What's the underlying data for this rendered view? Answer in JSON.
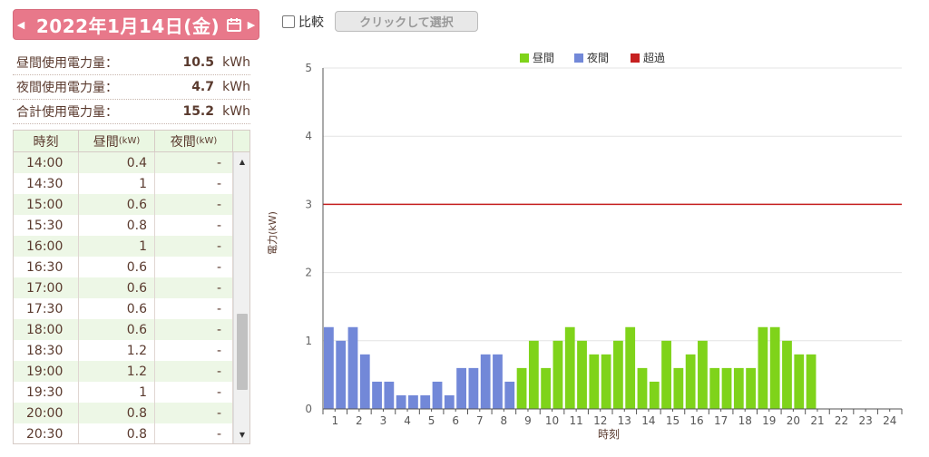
{
  "header": {
    "date": "2022年1月14日(金)",
    "compare_label": "比較",
    "select_button": "クリックして選択"
  },
  "summary": [
    {
      "label": "昼間使用電力量：",
      "value": "10.5",
      "unit": "kWh"
    },
    {
      "label": "夜間使用電力量：",
      "value": "4.7",
      "unit": "kWh"
    },
    {
      "label": "合計使用電力量：",
      "value": "15.2",
      "unit": "kWh"
    }
  ],
  "table": {
    "headers": {
      "time": "時刻",
      "day": "昼間",
      "night": "夜間",
      "unit": "(kW)"
    },
    "rows": [
      [
        "14:00",
        "0.4",
        "-"
      ],
      [
        "14:30",
        "1",
        "-"
      ],
      [
        "15:00",
        "0.6",
        "-"
      ],
      [
        "15:30",
        "0.8",
        "-"
      ],
      [
        "16:00",
        "1",
        "-"
      ],
      [
        "16:30",
        "0.6",
        "-"
      ],
      [
        "17:00",
        "0.6",
        "-"
      ],
      [
        "17:30",
        "0.6",
        "-"
      ],
      [
        "18:00",
        "0.6",
        "-"
      ],
      [
        "18:30",
        "1.2",
        "-"
      ],
      [
        "19:00",
        "1.2",
        "-"
      ],
      [
        "19:30",
        "1",
        "-"
      ],
      [
        "20:00",
        "0.8",
        "-"
      ],
      [
        "20:30",
        "0.8",
        "-"
      ]
    ]
  },
  "chart_data": {
    "type": "bar",
    "legend": [
      {
        "name": "昼間",
        "color": "#7fd31a"
      },
      {
        "name": "夜間",
        "color": "#7288d8"
      },
      {
        "name": "超過",
        "color": "#c62020"
      }
    ],
    "xlabel": "時刻",
    "ylabel": "電力(kW)",
    "ylim": [
      0,
      5
    ],
    "yticks": [
      0,
      1,
      2,
      3,
      4,
      5
    ],
    "xticks": [
      "1",
      "2",
      "3",
      "4",
      "5",
      "6",
      "7",
      "8",
      "9",
      "10",
      "11",
      "12",
      "13",
      "14",
      "15",
      "16",
      "17",
      "18",
      "19",
      "20",
      "21",
      "22",
      "23",
      "24"
    ],
    "limit_line": 3,
    "values": [
      1.2,
      1.0,
      1.2,
      0.8,
      0.4,
      0.4,
      0.2,
      0.2,
      0.2,
      0.4,
      0.2,
      0.6,
      0.6,
      0.8,
      0.8,
      0.4,
      0.6,
      1.0,
      0.6,
      1.0,
      1.2,
      1.0,
      0.8,
      0.8,
      1.0,
      1.2,
      0.6,
      0.4,
      1.0,
      0.6,
      0.8,
      1.0,
      0.6,
      0.6,
      0.6,
      0.6,
      1.2,
      1.2,
      1.0,
      0.8,
      0.8
    ],
    "series_of_bar": [
      "night",
      "night",
      "night",
      "night",
      "night",
      "night",
      "night",
      "night",
      "night",
      "night",
      "night",
      "night",
      "night",
      "night",
      "night",
      "night",
      "day",
      "day",
      "day",
      "day",
      "day",
      "day",
      "day",
      "day",
      "day",
      "day",
      "day",
      "day",
      "day",
      "day",
      "day",
      "day",
      "day",
      "day",
      "day",
      "day",
      "day",
      "day",
      "day",
      "day",
      "day"
    ]
  }
}
